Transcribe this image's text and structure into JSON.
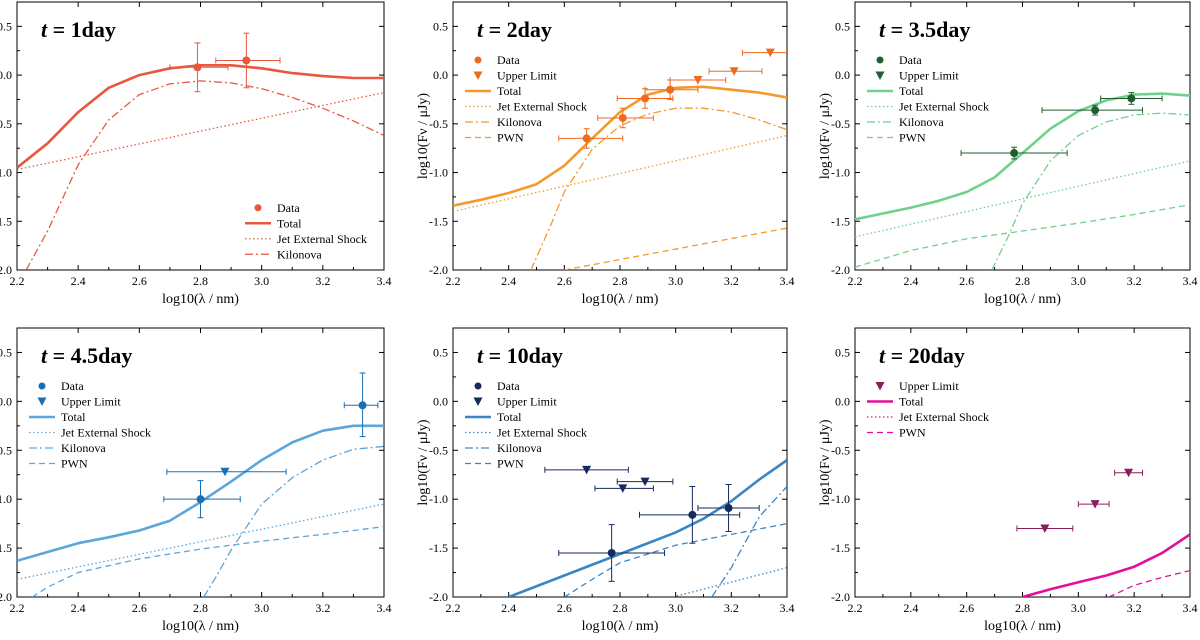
{
  "chart_data": {
    "type": "scatter",
    "xlabel": "log10(λ / nm)",
    "ylabel": "log10(Fν / μJy)",
    "xlim": [
      2.2,
      3.4
    ],
    "ylim": [
      -2.0,
      0.75
    ],
    "xticks": [
      "2.2",
      "2.4",
      "2.6",
      "2.8",
      "3.0",
      "3.2",
      "3.4"
    ],
    "yticks": [
      "-2.0",
      "-1.5",
      "-1.0",
      "-0.5",
      "0.0",
      "0.5"
    ],
    "panels": [
      {
        "title_prefix": "t",
        "title_value": " = 1day",
        "color": "#e8583f",
        "legend_position": "bottom-right",
        "legend": {
          "data": "Data",
          "upper": "",
          "total": "Total",
          "jet": "Jet External Shock",
          "kilonova": "Kilonova",
          "pwn": ""
        },
        "data": [
          {
            "x": 2.79,
            "y": 0.08,
            "xerr": [
              0.09,
              0.1
            ],
            "yerr": [
              0.25,
              0.25
            ]
          },
          {
            "x": 2.95,
            "y": 0.15,
            "xerr": [
              0.1,
              0.11
            ],
            "yerr": [
              0.28,
              0.28
            ]
          }
        ],
        "upper": [],
        "total": [
          [
            2.2,
            -0.95
          ],
          [
            2.3,
            -0.7
          ],
          [
            2.4,
            -0.38
          ],
          [
            2.5,
            -0.13
          ],
          [
            2.6,
            0.0
          ],
          [
            2.7,
            0.07
          ],
          [
            2.8,
            0.1
          ],
          [
            2.9,
            0.1
          ],
          [
            3.0,
            0.07
          ],
          [
            3.1,
            0.02
          ],
          [
            3.2,
            -0.01
          ],
          [
            3.3,
            -0.03
          ],
          [
            3.4,
            -0.03
          ]
        ],
        "jet": [
          [
            2.2,
            -0.97
          ],
          [
            3.4,
            -0.18
          ]
        ],
        "kilonova": [
          [
            2.23,
            -2.0
          ],
          [
            2.3,
            -1.6
          ],
          [
            2.4,
            -0.92
          ],
          [
            2.5,
            -0.46
          ],
          [
            2.6,
            -0.2
          ],
          [
            2.7,
            -0.09
          ],
          [
            2.8,
            -0.06
          ],
          [
            2.9,
            -0.08
          ],
          [
            3.0,
            -0.14
          ],
          [
            3.1,
            -0.23
          ],
          [
            3.2,
            -0.34
          ],
          [
            3.3,
            -0.47
          ],
          [
            3.4,
            -0.62
          ]
        ],
        "pwn": []
      },
      {
        "title_prefix": "t",
        "title_value": " = 2day",
        "color": "#f29a2e",
        "marker_color": "#f06a1e",
        "legend_position": "top-left",
        "legend": {
          "data": "Data",
          "upper": "Upper Limit",
          "total": "Total",
          "jet": "Jet External Shock",
          "kilonova": "Kilonova",
          "pwn": "PWN"
        },
        "data": [
          {
            "x": 2.68,
            "y": -0.65,
            "xerr": [
              0.1,
              0.13
            ],
            "yerr": [
              0.1,
              0.1
            ]
          },
          {
            "x": 2.81,
            "y": -0.44,
            "xerr": [
              0.09,
              0.11
            ],
            "yerr": [
              0.1,
              0.1
            ]
          },
          {
            "x": 2.89,
            "y": -0.24,
            "xerr": [
              0.1,
              0.1
            ],
            "yerr": [
              0.1,
              0.1
            ]
          },
          {
            "x": 2.98,
            "y": -0.15,
            "xerr": [
              0.09,
              0.1
            ],
            "yerr": [
              0.1,
              0.1
            ]
          }
        ],
        "upper": [
          {
            "x": 3.08,
            "y": -0.05,
            "xerr": [
              0.1,
              0.1
            ]
          },
          {
            "x": 3.21,
            "y": 0.04,
            "xerr": [
              0.09,
              0.1
            ]
          },
          {
            "x": 3.34,
            "y": 0.23,
            "xerr": [
              0.1,
              0.08
            ]
          }
        ],
        "total": [
          [
            2.2,
            -1.34
          ],
          [
            2.3,
            -1.28
          ],
          [
            2.4,
            -1.21
          ],
          [
            2.5,
            -1.12
          ],
          [
            2.6,
            -0.93
          ],
          [
            2.7,
            -0.65
          ],
          [
            2.8,
            -0.38
          ],
          [
            2.9,
            -0.2
          ],
          [
            3.0,
            -0.13
          ],
          [
            3.1,
            -0.12
          ],
          [
            3.2,
            -0.15
          ],
          [
            3.3,
            -0.18
          ],
          [
            3.4,
            -0.23
          ]
        ],
        "jet": [
          [
            2.2,
            -1.4
          ],
          [
            3.4,
            -0.62
          ]
        ],
        "kilonova": [
          [
            2.48,
            -2.0
          ],
          [
            2.55,
            -1.55
          ],
          [
            2.6,
            -1.2
          ],
          [
            2.7,
            -0.76
          ],
          [
            2.8,
            -0.52
          ],
          [
            2.9,
            -0.4
          ],
          [
            3.0,
            -0.34
          ],
          [
            3.1,
            -0.34
          ],
          [
            3.2,
            -0.38
          ],
          [
            3.3,
            -0.46
          ],
          [
            3.4,
            -0.56
          ]
        ],
        "pwn": [
          [
            2.6,
            -2.0
          ],
          [
            3.4,
            -1.57
          ]
        ]
      },
      {
        "title_prefix": "t",
        "title_value": " = 3.5day",
        "color": "#6fd18c",
        "marker_color": "#1f5e2e",
        "legend_position": "top-left",
        "legend": {
          "data": "Data",
          "upper": "Upper Limit",
          "total": "Total",
          "jet": "Jet External Shock",
          "kilonova": "Kilonova",
          "pwn": "PWN"
        },
        "data": [
          {
            "x": 2.77,
            "y": -0.8,
            "xerr": [
              0.19,
              0.19
            ],
            "yerr": [
              0.06,
              0.06
            ]
          },
          {
            "x": 3.06,
            "y": -0.36,
            "xerr": [
              0.19,
              0.17
            ],
            "yerr": [
              0.05,
              0.05
            ]
          },
          {
            "x": 3.19,
            "y": -0.24,
            "xerr": [
              0.11,
              0.11
            ],
            "yerr": [
              0.06,
              0.06
            ]
          }
        ],
        "upper": [],
        "total": [
          [
            2.2,
            -1.48
          ],
          [
            2.3,
            -1.42
          ],
          [
            2.4,
            -1.36
          ],
          [
            2.5,
            -1.29
          ],
          [
            2.6,
            -1.2
          ],
          [
            2.7,
            -1.05
          ],
          [
            2.8,
            -0.8
          ],
          [
            2.9,
            -0.55
          ],
          [
            3.0,
            -0.37
          ],
          [
            3.1,
            -0.26
          ],
          [
            3.2,
            -0.2
          ],
          [
            3.3,
            -0.19
          ],
          [
            3.4,
            -0.21
          ]
        ],
        "jet": [
          [
            2.2,
            -1.66
          ],
          [
            3.4,
            -0.88
          ]
        ],
        "kilonova": [
          [
            2.69,
            -2.0
          ],
          [
            2.75,
            -1.65
          ],
          [
            2.8,
            -1.32
          ],
          [
            2.9,
            -0.88
          ],
          [
            3.0,
            -0.62
          ],
          [
            3.1,
            -0.48
          ],
          [
            3.2,
            -0.41
          ],
          [
            3.3,
            -0.39
          ],
          [
            3.4,
            -0.41
          ]
        ],
        "pwn": [
          [
            2.2,
            -1.97
          ],
          [
            2.4,
            -1.8
          ],
          [
            2.6,
            -1.68
          ],
          [
            2.8,
            -1.6
          ],
          [
            3.0,
            -1.52
          ],
          [
            3.2,
            -1.43
          ],
          [
            3.4,
            -1.33
          ]
        ]
      },
      {
        "title_prefix": "t",
        "title_value": " = 4.5day",
        "color": "#5ba6dc",
        "marker_color": "#1a6fb0",
        "legend_position": "top-left",
        "legend": {
          "data": "Data",
          "upper": "Upper Limit",
          "total": "Total",
          "jet": "Jet External Shock",
          "kilonova": "Kilonova",
          "pwn": "PWN"
        },
        "data": [
          {
            "x": 2.8,
            "y": -1.0,
            "xerr": [
              0.12,
              0.13
            ],
            "yerr": [
              0.19,
              0.19
            ]
          },
          {
            "x": 3.33,
            "y": -0.04,
            "xerr": [
              0.06,
              0.05
            ],
            "yerr": [
              0.32,
              0.33
            ]
          }
        ],
        "upper": [
          {
            "x": 2.88,
            "y": -0.72,
            "xerr": [
              0.19,
              0.2
            ]
          }
        ],
        "total": [
          [
            2.2,
            -1.63
          ],
          [
            2.3,
            -1.54
          ],
          [
            2.4,
            -1.45
          ],
          [
            2.5,
            -1.39
          ],
          [
            2.6,
            -1.32
          ],
          [
            2.7,
            -1.22
          ],
          [
            2.8,
            -1.03
          ],
          [
            2.9,
            -0.82
          ],
          [
            3.0,
            -0.6
          ],
          [
            3.1,
            -0.42
          ],
          [
            3.2,
            -0.3
          ],
          [
            3.3,
            -0.25
          ],
          [
            3.4,
            -0.25
          ]
        ],
        "jet": [
          [
            2.2,
            -1.82
          ],
          [
            3.4,
            -1.05
          ]
        ],
        "kilonova": [
          [
            2.81,
            -2.0
          ],
          [
            2.85,
            -1.8
          ],
          [
            2.9,
            -1.52
          ],
          [
            3.0,
            -1.05
          ],
          [
            3.1,
            -0.78
          ],
          [
            3.2,
            -0.6
          ],
          [
            3.3,
            -0.49
          ],
          [
            3.4,
            -0.46
          ]
        ],
        "pwn": [
          [
            2.25,
            -2.0
          ],
          [
            2.3,
            -1.9
          ],
          [
            2.4,
            -1.75
          ],
          [
            2.6,
            -1.61
          ],
          [
            2.8,
            -1.51
          ],
          [
            3.0,
            -1.43
          ],
          [
            3.2,
            -1.36
          ],
          [
            3.4,
            -1.28
          ]
        ]
      },
      {
        "title_prefix": "t",
        "title_value": " = 10day",
        "color": "#3a86c4",
        "marker_color": "#172a5e",
        "legend_position": "top-left",
        "legend": {
          "data": "Data",
          "upper": "Upper Limit",
          "total": "Total",
          "jet": "Jet External Shock",
          "kilonova": "Kilonova",
          "pwn": "PWN"
        },
        "data": [
          {
            "x": 2.77,
            "y": -1.55,
            "xerr": [
              0.19,
              0.19
            ],
            "yerr": [
              0.29,
              0.29
            ]
          },
          {
            "x": 3.06,
            "y": -1.16,
            "xerr": [
              0.19,
              0.17
            ],
            "yerr": [
              0.29,
              0.29
            ]
          },
          {
            "x": 3.19,
            "y": -1.09,
            "xerr": [
              0.11,
              0.11
            ],
            "yerr": [
              0.24,
              0.24
            ]
          }
        ],
        "upper": [
          {
            "x": 2.68,
            "y": -0.7,
            "xerr": [
              0.15,
              0.15
            ]
          },
          {
            "x": 2.81,
            "y": -0.89,
            "xerr": [
              0.1,
              0.11
            ]
          },
          {
            "x": 2.89,
            "y": -0.82,
            "xerr": [
              0.1,
              0.1
            ]
          }
        ],
        "total": [
          [
            2.4,
            -2.0
          ],
          [
            2.6,
            -1.78
          ],
          [
            2.8,
            -1.56
          ],
          [
            3.0,
            -1.34
          ],
          [
            3.1,
            -1.2
          ],
          [
            3.2,
            -1.02
          ],
          [
            3.3,
            -0.8
          ],
          [
            3.4,
            -0.6
          ]
        ],
        "jet": [
          [
            2.99,
            -2.0
          ],
          [
            3.4,
            -1.7
          ]
        ],
        "kilonova": [
          [
            3.13,
            -2.0
          ],
          [
            3.2,
            -1.7
          ],
          [
            3.3,
            -1.18
          ],
          [
            3.4,
            -0.87
          ]
        ],
        "pwn": [
          [
            2.6,
            -2.0
          ],
          [
            2.7,
            -1.82
          ],
          [
            2.8,
            -1.65
          ],
          [
            3.0,
            -1.47
          ],
          [
            3.2,
            -1.36
          ],
          [
            3.4,
            -1.25
          ]
        ]
      },
      {
        "title_prefix": "t",
        "title_value": " = 20day",
        "color": "#e0109a",
        "marker_color": "#8a1d5e",
        "legend_position": "top-left",
        "legend": {
          "data": "",
          "upper": "Upper Limit",
          "total": "Total",
          "jet": "Jet External Shock",
          "kilonova": "",
          "pwn": "PWN"
        },
        "data": [],
        "upper": [
          {
            "x": 2.88,
            "y": -1.3,
            "xerr": [
              0.1,
              0.1
            ]
          },
          {
            "x": 3.06,
            "y": -1.05,
            "xerr": [
              0.06,
              0.05
            ]
          },
          {
            "x": 3.18,
            "y": -0.73,
            "xerr": [
              0.05,
              0.05
            ]
          }
        ],
        "total": [
          [
            2.8,
            -2.0
          ],
          [
            2.9,
            -1.92
          ],
          [
            3.0,
            -1.85
          ],
          [
            3.1,
            -1.78
          ],
          [
            3.2,
            -1.69
          ],
          [
            3.3,
            -1.55
          ],
          [
            3.4,
            -1.36
          ]
        ],
        "jet": [],
        "kilonova": [],
        "pwn": [
          [
            3.11,
            -2.0
          ],
          [
            3.2,
            -1.88
          ],
          [
            3.3,
            -1.8
          ],
          [
            3.4,
            -1.73
          ]
        ]
      }
    ]
  }
}
